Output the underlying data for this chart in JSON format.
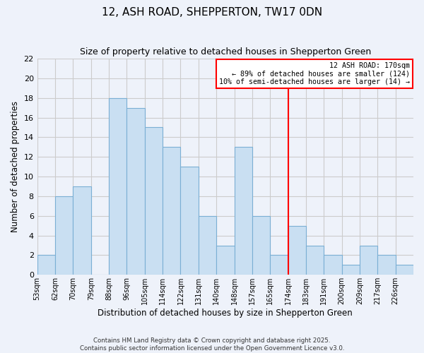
{
  "title": "12, ASH ROAD, SHEPPERTON, TW17 0DN",
  "subtitle": "Size of property relative to detached houses in Shepperton Green",
  "xlabel": "Distribution of detached houses by size in Shepperton Green",
  "ylabel": "Number of detached properties",
  "bin_labels": [
    "53sqm",
    "62sqm",
    "70sqm",
    "79sqm",
    "88sqm",
    "96sqm",
    "105sqm",
    "114sqm",
    "122sqm",
    "131sqm",
    "140sqm",
    "148sqm",
    "157sqm",
    "165sqm",
    "174sqm",
    "183sqm",
    "191sqm",
    "200sqm",
    "209sqm",
    "217sqm",
    "226sqm"
  ],
  "counts": [
    2,
    8,
    9,
    0,
    18,
    17,
    15,
    13,
    11,
    6,
    3,
    13,
    6,
    2,
    5,
    3,
    2,
    1,
    3,
    2,
    1
  ],
  "bar_color": "#c9dff2",
  "bar_edge_color": "#7bafd4",
  "vline_x_index": 14,
  "vline_color": "red",
  "annotation_line1": "12 ASH ROAD: 170sqm",
  "annotation_line2": "← 89% of detached houses are smaller (124)",
  "annotation_line3": "10% of semi-detached houses are larger (14) →",
  "annotation_box_edgecolor": "red",
  "annotation_box_facecolor": "white",
  "ylim": [
    0,
    22
  ],
  "yticks": [
    0,
    2,
    4,
    6,
    8,
    10,
    12,
    14,
    16,
    18,
    20,
    22
  ],
  "grid_color": "#cccccc",
  "background_color": "#eef2fa",
  "footer1": "Contains HM Land Registry data © Crown copyright and database right 2025.",
  "footer2": "Contains public sector information licensed under the Open Government Licence v3.0."
}
